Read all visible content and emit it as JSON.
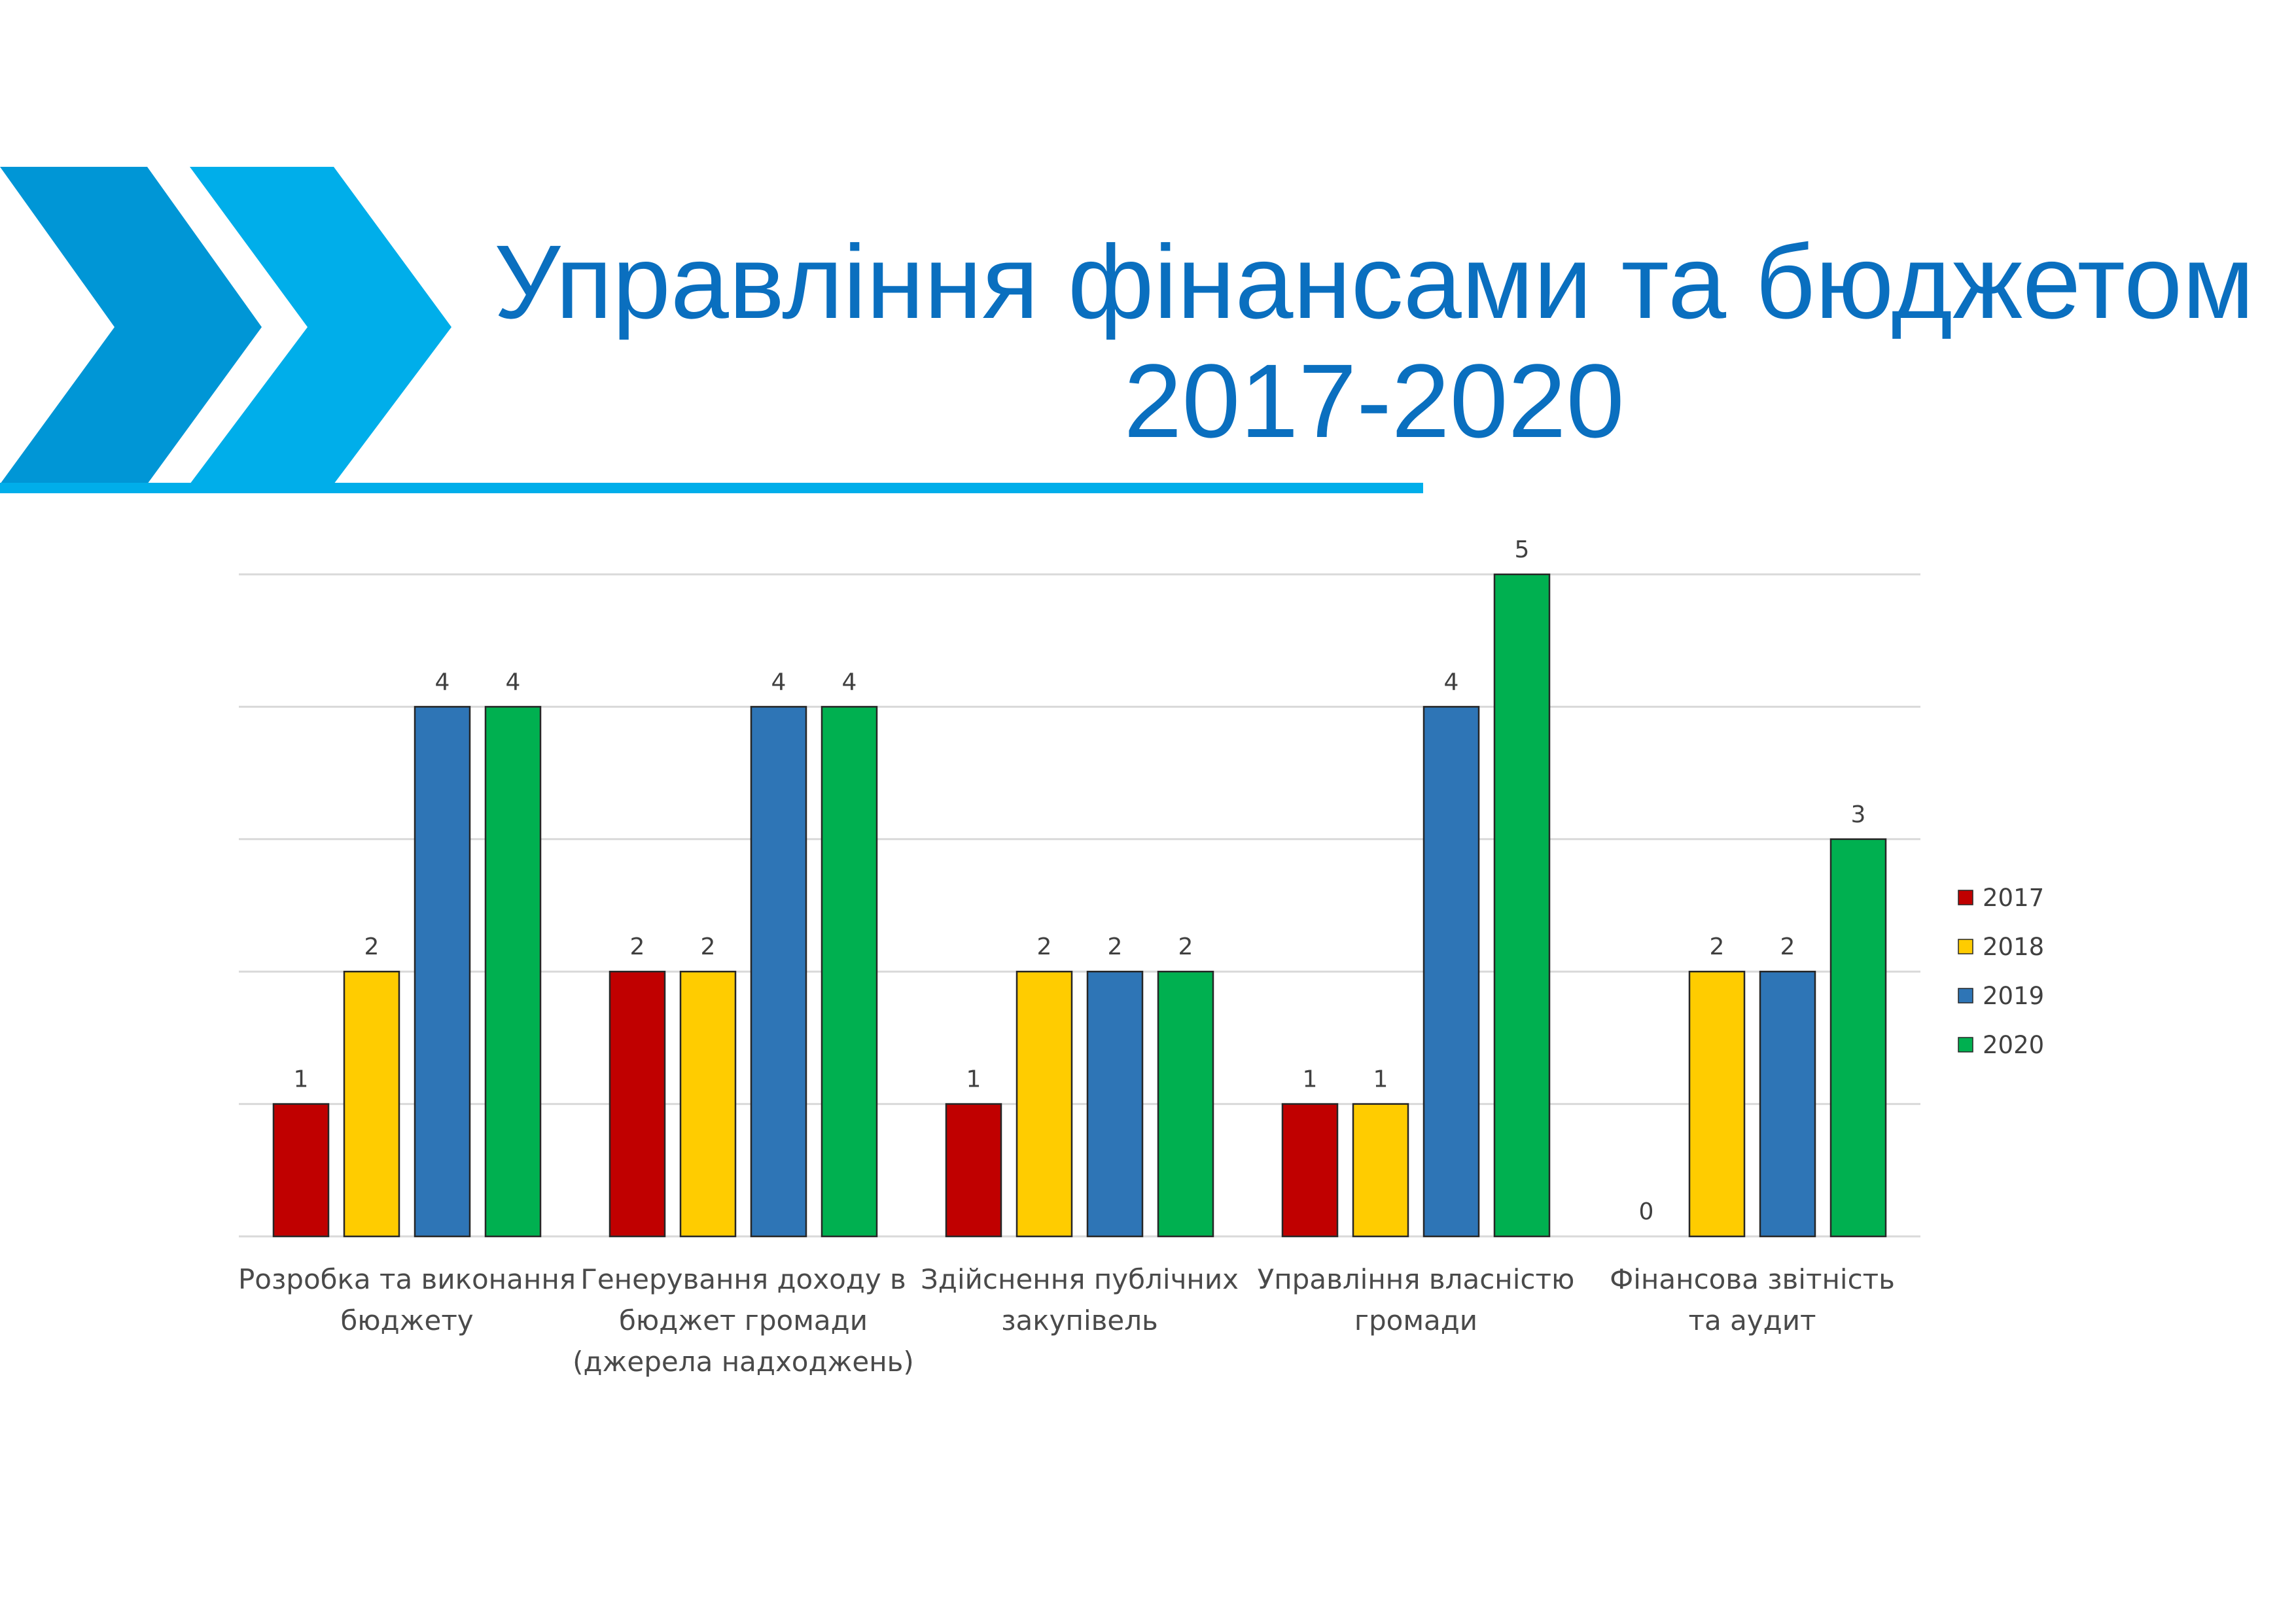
{
  "header": {
    "title_line1": "Управління фінансами та бюджетом",
    "title_line2": "2017-2020",
    "colors": {
      "title": "#0a6fbf",
      "chevron_dark": "#0096d6",
      "chevron_light": "#00aeea",
      "rule": "#00aeea"
    }
  },
  "chart_data": {
    "type": "bar",
    "categories": [
      [
        "Розробка та виконання",
        "бюджету"
      ],
      [
        "Генерування доходу в",
        "бюджет громади",
        "(джерела надходжень)"
      ],
      [
        "Здійснення публічних",
        "закупівель"
      ],
      [
        "Управління власністю",
        "громади"
      ],
      [
        "Фінансова звітність",
        "та аудит"
      ]
    ],
    "series": [
      {
        "name": "2017",
        "color": "#c00000",
        "values": [
          1,
          2,
          1,
          1,
          0
        ]
      },
      {
        "name": "2018",
        "color": "#ffcc00",
        "values": [
          2,
          2,
          2,
          1,
          2
        ]
      },
      {
        "name": "2019",
        "color": "#2e75b6",
        "values": [
          4,
          4,
          2,
          4,
          2
        ]
      },
      {
        "name": "2020",
        "color": "#00b050",
        "values": [
          4,
          4,
          2,
          5,
          3
        ]
      }
    ],
    "ylim": [
      0,
      5
    ],
    "grid": true,
    "legend_position": "right",
    "data_labels": true,
    "title": "",
    "xlabel": "",
    "ylabel": ""
  }
}
